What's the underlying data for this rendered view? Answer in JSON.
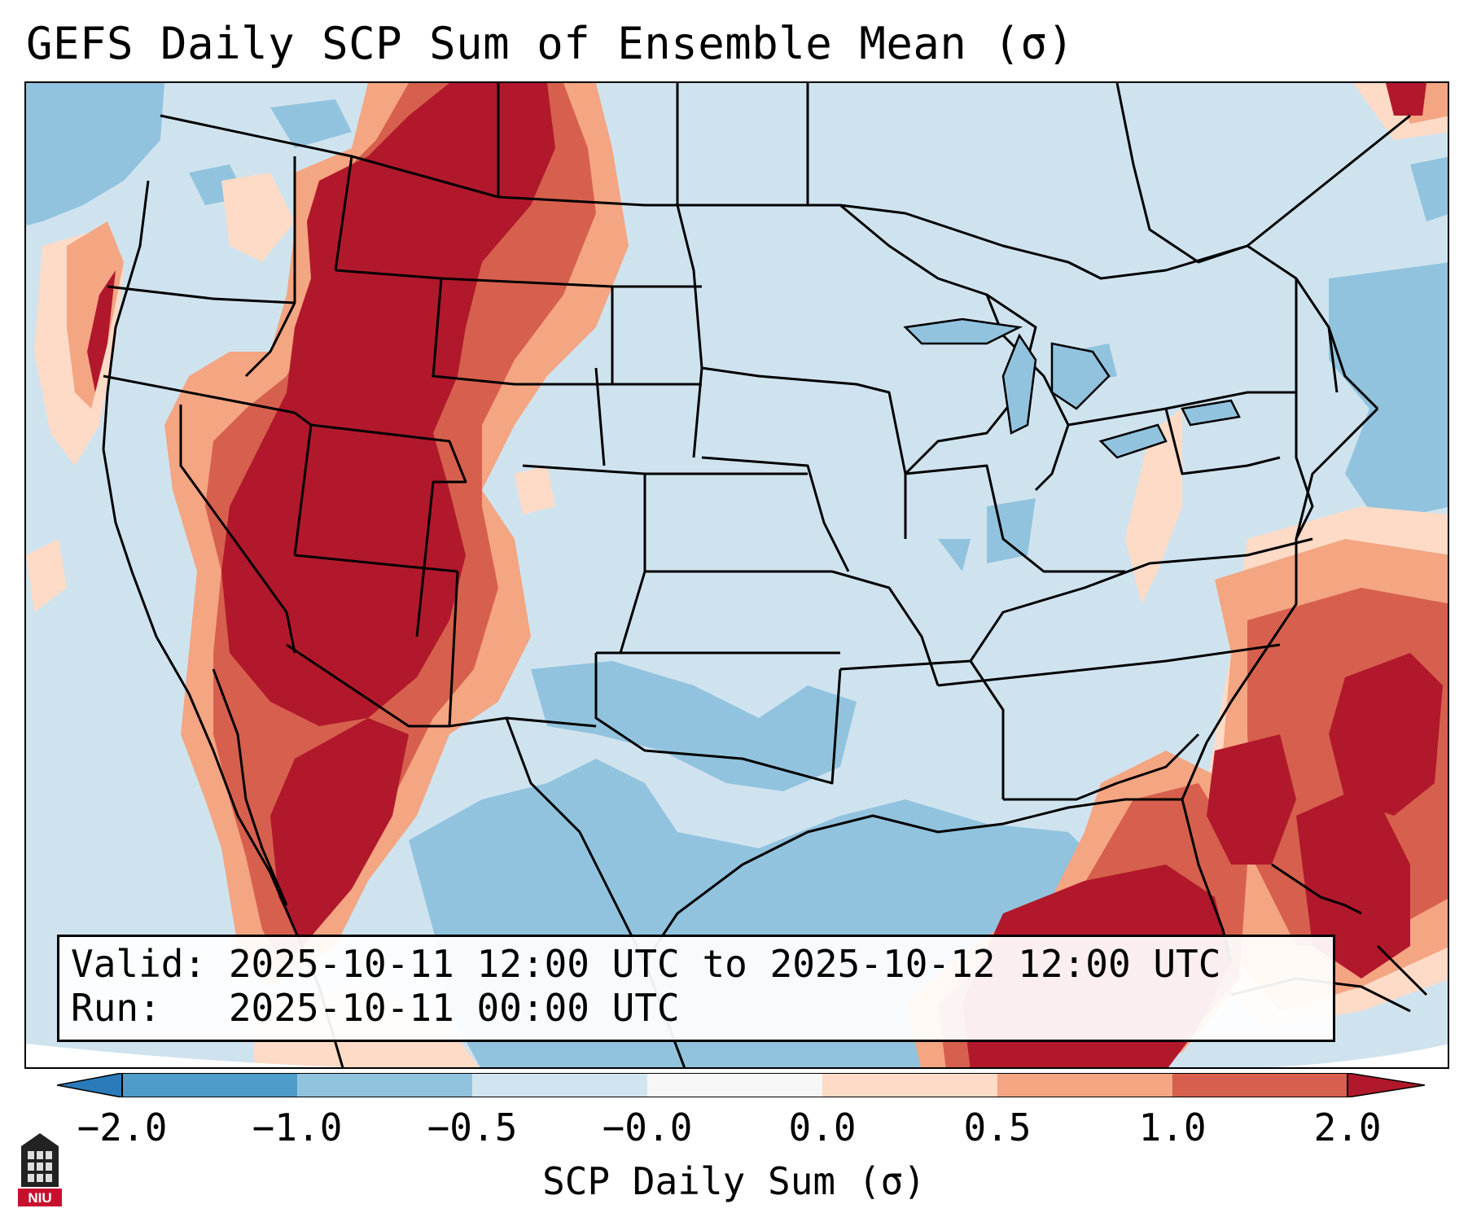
{
  "title": "GEFS Daily SCP Sum of Ensemble Mean (σ)",
  "info": {
    "valid_line": "Valid: 2025-10-11 12:00 UTC to 2025-10-12 12:00 UTC",
    "run_line": "Run:   2025-10-11 00:00 UTC"
  },
  "colorbar": {
    "label": "SCP Daily Sum (σ)",
    "ticks": [
      "−2.0",
      "−1.0",
      "−0.5",
      "−0.0",
      "0.0",
      "0.5",
      "1.0",
      "2.0"
    ],
    "colors": [
      "#2b7bba",
      "#91c3de",
      "#d1e5f0",
      "#f7f7f7",
      "#fddbc7",
      "#f4a582",
      "#d6604d",
      "#b2182b"
    ]
  },
  "map": {
    "region": "CONUS",
    "background_color": "#cfe3ef"
  },
  "logo": {
    "text": "NIU"
  }
}
